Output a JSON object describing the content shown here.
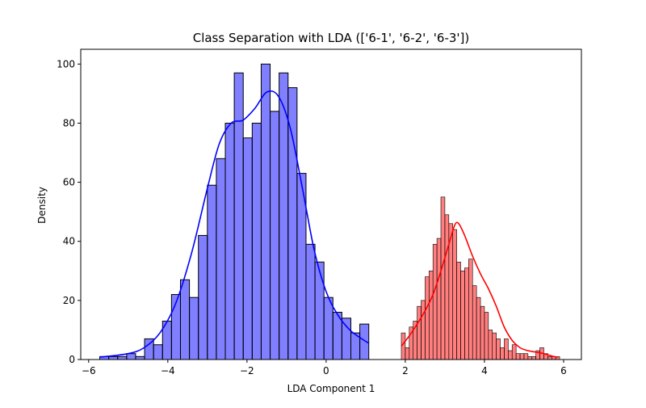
{
  "chart_data": {
    "type": "bar",
    "title": "Class Separation with LDA (['6-1', '6-2', '6-3'])",
    "xlabel": "LDA Component 1",
    "ylabel": "Density",
    "xlim": [
      -6.2,
      6.45
    ],
    "ylim": [
      0,
      105
    ],
    "xticks": [
      -6,
      -4,
      -2,
      0,
      2,
      4,
      6
    ],
    "xtick_labels": [
      "−6",
      "−4",
      "−2",
      "0",
      "2",
      "4",
      "6"
    ],
    "yticks": [
      0,
      20,
      40,
      60,
      80,
      100
    ],
    "ytick_labels": [
      "0",
      "20",
      "40",
      "60",
      "80",
      "100"
    ],
    "grid": false,
    "series": [
      {
        "color": "#0000ff",
        "kde_color": "#0000ff",
        "bins_start": -5.72,
        "bin_width": 0.2266,
        "values": [
          1,
          1,
          1,
          2,
          1,
          7,
          5,
          13,
          22,
          27,
          21,
          42,
          59,
          68,
          80,
          97,
          75,
          80,
          100,
          84,
          97,
          92,
          63,
          39,
          33,
          21,
          16,
          14,
          9,
          12
        ],
        "kde": [
          [
            -5.72,
            0.8
          ],
          [
            -5.0,
            2.0
          ],
          [
            -4.6,
            4.0
          ],
          [
            -4.2,
            9.0
          ],
          [
            -3.8,
            19.0
          ],
          [
            -3.4,
            36.0
          ],
          [
            -3.0,
            58.0
          ],
          [
            -2.7,
            73.0
          ],
          [
            -2.4,
            80.0
          ],
          [
            -2.1,
            81.0
          ],
          [
            -1.8,
            85.0
          ],
          [
            -1.5,
            90.5
          ],
          [
            -1.2,
            89.0
          ],
          [
            -0.9,
            78.0
          ],
          [
            -0.6,
            58.0
          ],
          [
            -0.3,
            37.0
          ],
          [
            0.0,
            23.0
          ],
          [
            0.3,
            15.0
          ],
          [
            0.6,
            10.0
          ],
          [
            0.9,
            7.0
          ],
          [
            1.08,
            5.5
          ]
        ]
      },
      {
        "color": "#ff0000",
        "kde_color": "#ff0000",
        "bins_start": 1.9,
        "bin_width": 0.1,
        "values": [
          9,
          4,
          11,
          13,
          18,
          20,
          28,
          30,
          39,
          41,
          55,
          49,
          46,
          44,
          33,
          30,
          31,
          34,
          25,
          21,
          18,
          16,
          10,
          9,
          7,
          4,
          7,
          3,
          5,
          2,
          2,
          2,
          1,
          1,
          3,
          4,
          2,
          1,
          1,
          1
        ],
        "kde": [
          [
            1.9,
            4.5
          ],
          [
            2.1,
            8.0
          ],
          [
            2.3,
            12.0
          ],
          [
            2.5,
            16.5
          ],
          [
            2.7,
            22.0
          ],
          [
            2.9,
            30.0
          ],
          [
            3.1,
            39.0
          ],
          [
            3.25,
            45.5
          ],
          [
            3.35,
            46.0
          ],
          [
            3.5,
            42.0
          ],
          [
            3.7,
            35.0
          ],
          [
            3.9,
            29.0
          ],
          [
            4.1,
            24.0
          ],
          [
            4.3,
            18.0
          ],
          [
            4.5,
            11.0
          ],
          [
            4.7,
            6.5
          ],
          [
            4.9,
            4.0
          ],
          [
            5.1,
            3.0
          ],
          [
            5.3,
            2.5
          ],
          [
            5.5,
            2.0
          ],
          [
            5.7,
            1.2
          ],
          [
            5.85,
            0.8
          ]
        ]
      }
    ]
  }
}
